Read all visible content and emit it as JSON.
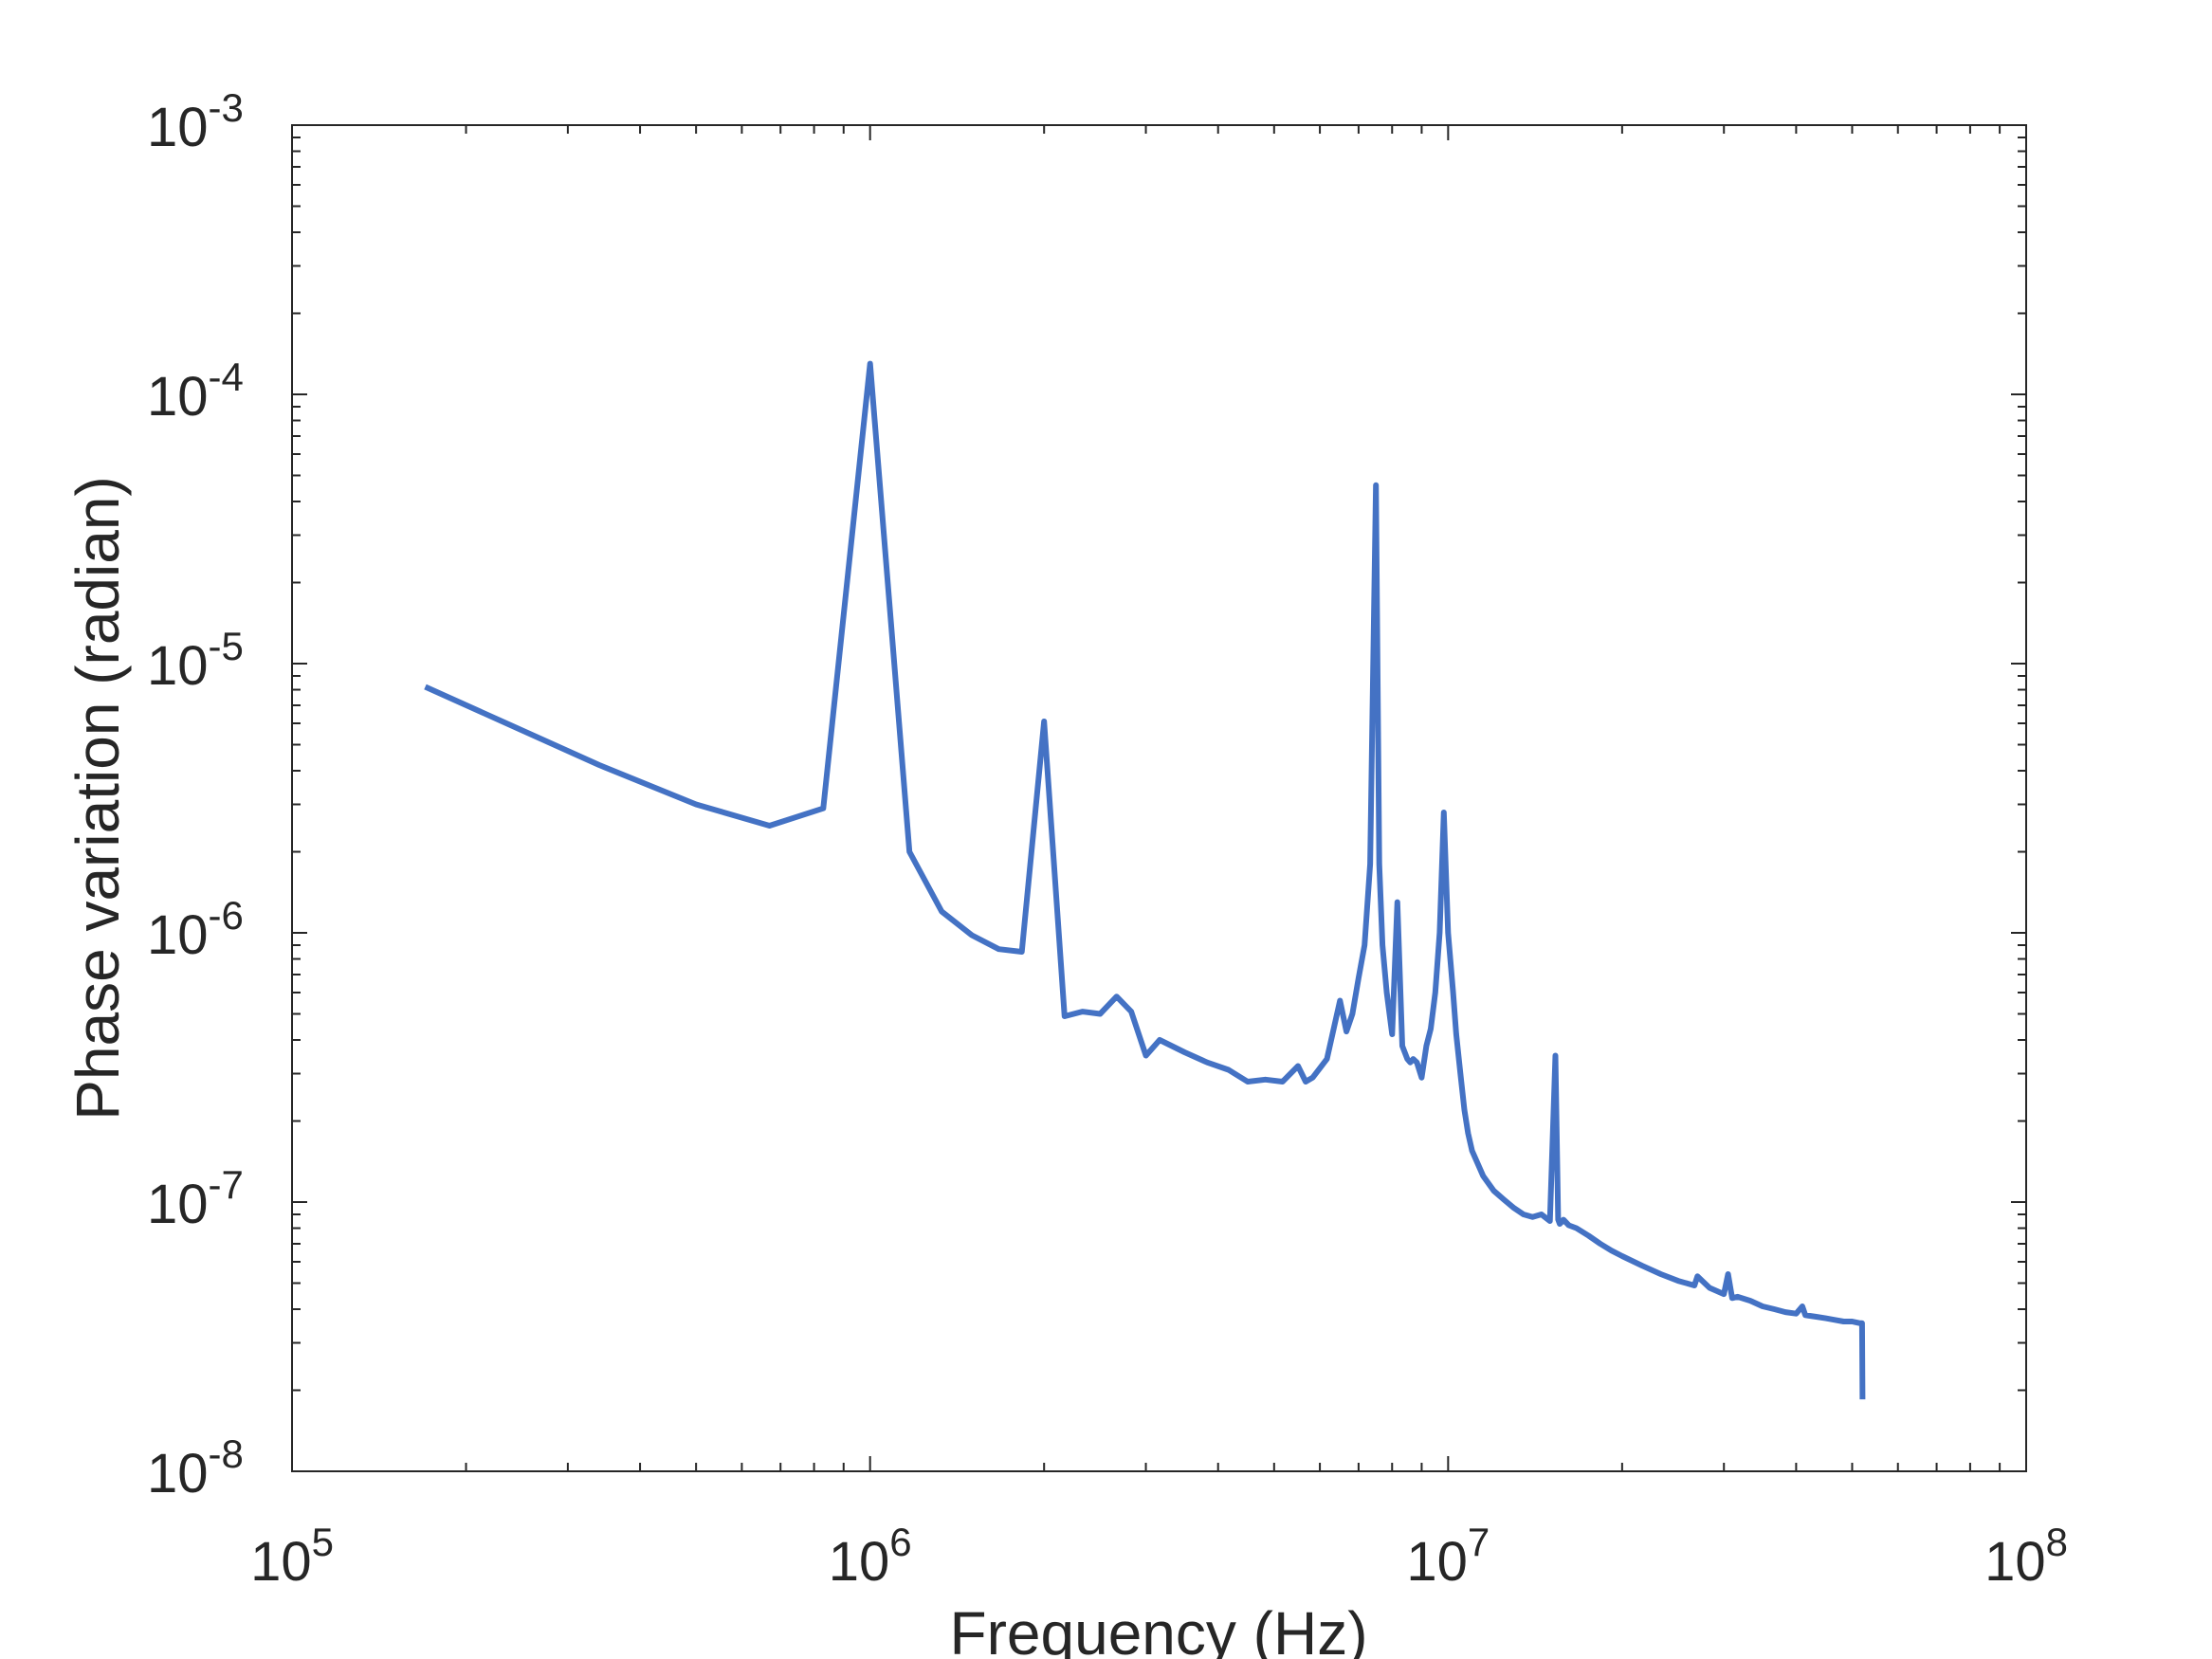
{
  "chart_data": {
    "type": "line",
    "title": "",
    "xlabel": "Frequency (Hz)",
    "ylabel": "Phase variation (radian)",
    "xscale": "log",
    "yscale": "log",
    "xlim": [
      100000,
      100000000
    ],
    "ylim": [
      1e-08,
      0.001
    ],
    "grid": false,
    "legend": "none",
    "x_ticks": [
      {
        "value": 100000,
        "base": "10",
        "exp": "5"
      },
      {
        "value": 1000000,
        "base": "10",
        "exp": "6"
      },
      {
        "value": 10000000,
        "base": "10",
        "exp": "7"
      },
      {
        "value": 100000000,
        "base": "10",
        "exp": "8"
      }
    ],
    "y_ticks": [
      {
        "value": 1e-08,
        "base": "10",
        "exp": "-8"
      },
      {
        "value": 1e-07,
        "base": "10",
        "exp": "-7"
      },
      {
        "value": 1e-06,
        "base": "10",
        "exp": "-6"
      },
      {
        "value": 1e-05,
        "base": "10",
        "exp": "-5"
      },
      {
        "value": 0.0001,
        "base": "10",
        "exp": "-4"
      },
      {
        "value": 0.001,
        "base": "10",
        "exp": "-3"
      }
    ],
    "series": [
      {
        "color": "#4472C4",
        "x": [
          170000,
          340000,
          500000,
          670000,
          830000,
          1000000,
          1170000,
          1330000,
          1500000,
          1670000,
          1830000,
          2000000,
          2170000,
          2330000,
          2500000,
          2670000,
          2830000,
          3000000,
          3170000,
          3500000,
          3830000,
          4170000,
          4500000,
          4830000,
          5170000,
          5500000,
          5670000,
          5830000,
          6170000,
          6500000,
          6670000,
          6830000,
          7000000,
          7170000,
          7330000,
          7500000,
          7600000,
          7700000,
          7830000,
          8000000,
          8170000,
          8330000,
          8500000,
          8600000,
          8700000,
          8830000,
          9000000,
          9170000,
          9330000,
          9500000,
          9670000,
          9830000,
          10000000,
          10200000,
          10330000,
          10500000,
          10670000,
          10830000,
          11000000,
          11500000,
          12000000,
          12500000,
          13000000,
          13500000,
          14000000,
          14500000,
          15000000,
          15330000,
          15500000,
          15600000,
          15830000,
          16170000,
          16670000,
          17500000,
          18330000,
          19170000,
          20000000,
          21670000,
          23330000,
          25000000,
          26670000,
          27000000,
          28330000,
          30000000,
          30500000,
          31000000,
          31670000,
          33330000,
          35000000,
          36670000,
          38330000,
          40000000,
          41000000,
          41500000,
          43330000,
          45000000,
          46670000,
          48330000,
          50000000,
          51500000,
          52000000,
          52100000
        ],
        "y": [
          8.2e-06,
          4.2e-06,
          3e-06,
          2.5e-06,
          2.9e-06,
          0.00013,
          2e-06,
          1.2e-06,
          9.8e-07,
          8.7e-07,
          8.5e-07,
          6.1e-06,
          4.9e-07,
          5.1e-07,
          5e-07,
          5.8e-07,
          5.1e-07,
          3.5e-07,
          4e-07,
          3.6e-07,
          3.3e-07,
          3.1e-07,
          2.8e-07,
          2.85e-07,
          2.8e-07,
          3.2e-07,
          2.8e-07,
          2.9e-07,
          3.4e-07,
          5.6e-07,
          4.3e-07,
          5e-07,
          6.8e-07,
          9e-07,
          1.8e-06,
          4.6e-05,
          1.8e-06,
          9e-07,
          6e-07,
          4.2e-07,
          1.3e-06,
          3.8e-07,
          3.4e-07,
          3.3e-07,
          3.4e-07,
          3.3e-07,
          2.9e-07,
          3.8e-07,
          4.4e-07,
          6e-07,
          1e-06,
          2.8e-06,
          1e-06,
          6e-07,
          4.2e-07,
          3e-07,
          2.2e-07,
          1.8e-07,
          1.55e-07,
          1.25e-07,
          1.1e-07,
          1.02e-07,
          9.5e-08,
          9e-08,
          8.8e-08,
          9e-08,
          8.5e-08,
          3.5e-07,
          8.6e-08,
          8.3e-08,
          8.6e-08,
          8.2e-08,
          8e-08,
          7.5e-08,
          7e-08,
          6.6e-08,
          6.3e-08,
          5.8e-08,
          5.4e-08,
          5.1e-08,
          4.9e-08,
          5.3e-08,
          4.8e-08,
          4.55e-08,
          5.4e-08,
          4.4e-08,
          4.45e-08,
          4.3e-08,
          4.1e-08,
          4e-08,
          3.9e-08,
          3.85e-08,
          4.1e-08,
          3.8e-08,
          3.75e-08,
          3.7e-08,
          3.65e-08,
          3.6e-08,
          3.6e-08,
          3.55e-08,
          3.55e-08,
          1.85e-08
        ]
      }
    ]
  }
}
